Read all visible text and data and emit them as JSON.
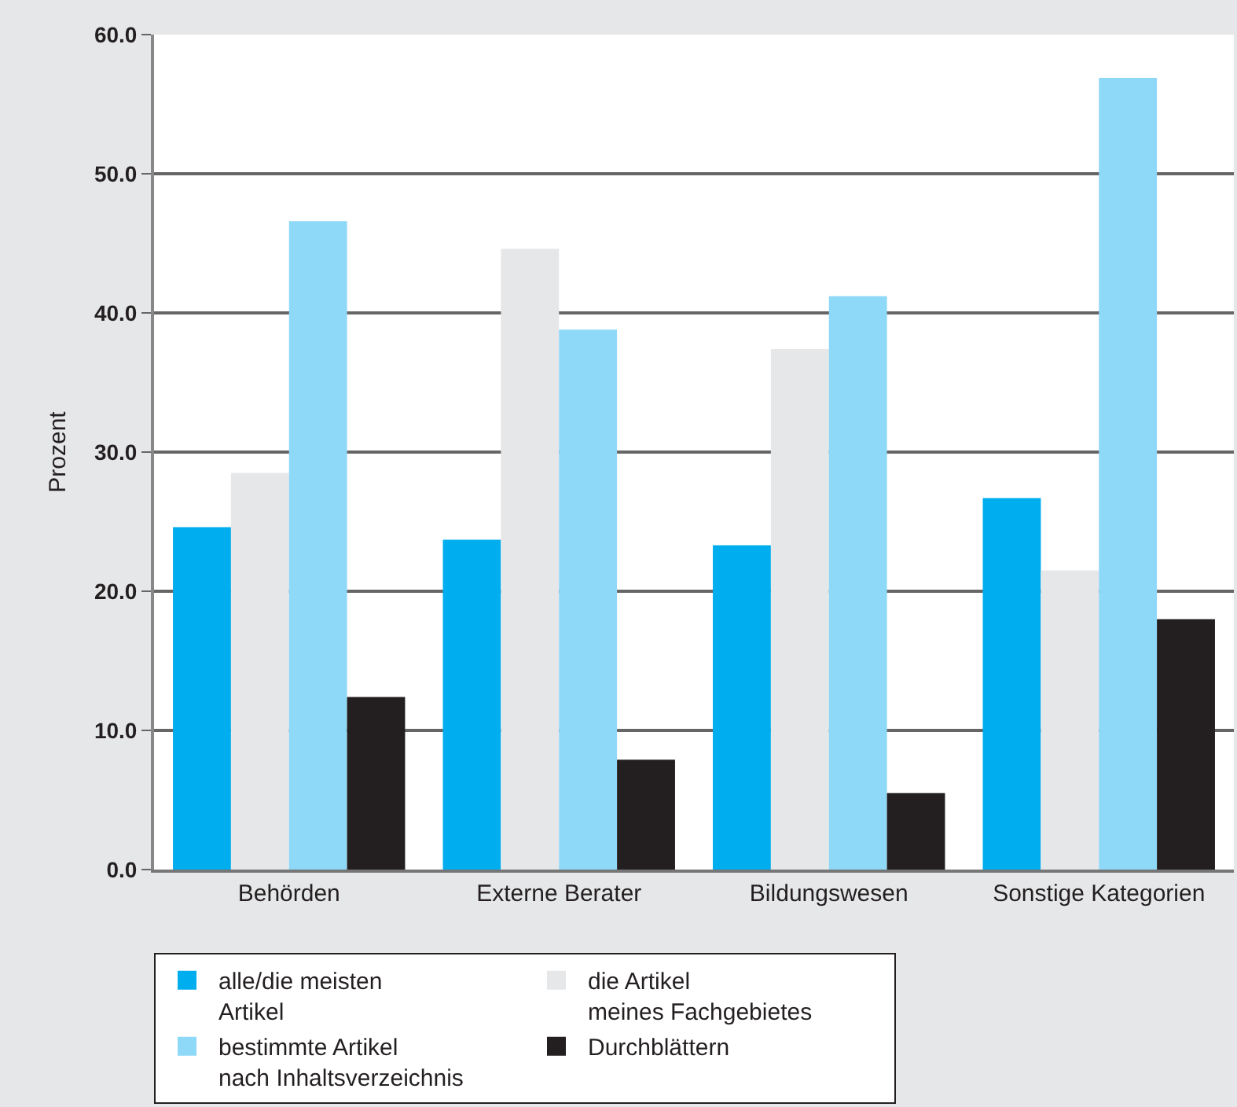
{
  "chart_data": {
    "type": "bar",
    "ylabel": "Prozent",
    "categories": [
      "Behörden",
      "Externe Berater",
      "Bildungswesen",
      "Sonstige Kategorien"
    ],
    "series": [
      {
        "name": "alle/die meisten\nArtikel",
        "color": "#00adee",
        "values": [
          24.6,
          23.7,
          23.3,
          26.7
        ]
      },
      {
        "name": "die Artikel\nmeines Fachgebietes",
        "color": "#e6e7e8",
        "values": [
          28.5,
          44.6,
          37.4,
          21.5
        ]
      },
      {
        "name": "bestimmte Artikel\nnach Inhaltsverzeichnis",
        "color": "#8ed8f8",
        "values": [
          46.6,
          38.8,
          41.2,
          56.9
        ]
      },
      {
        "name": "Durchblättern",
        "color": "#231f20",
        "values": [
          12.4,
          7.9,
          5.5,
          18.0
        ]
      }
    ],
    "ylim": [
      0,
      60
    ],
    "yticks": [
      {
        "value": 0,
        "label": "0.0"
      },
      {
        "value": 10,
        "label": "10.0"
      },
      {
        "value": 20,
        "label": "20.0"
      },
      {
        "value": 30,
        "label": "30.0"
      },
      {
        "value": 40,
        "label": "40.0"
      },
      {
        "value": 50,
        "label": "50.0"
      },
      {
        "value": 60,
        "label": "60.0"
      }
    ],
    "grid": "y",
    "legend": "bottom"
  }
}
